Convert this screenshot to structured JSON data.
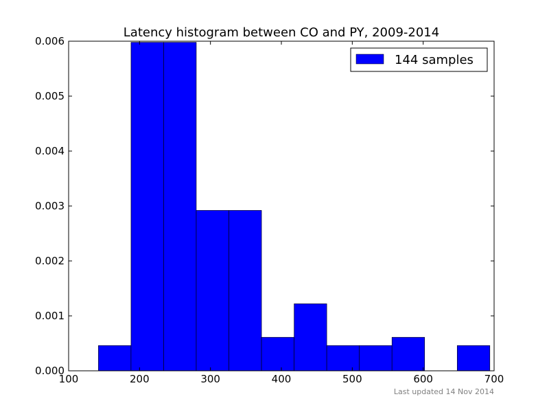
{
  "chart_data": {
    "type": "bar",
    "title": "Latency histogram between CO and PY, 2009-2014",
    "xlabel": "",
    "ylabel": "",
    "xlim": [
      100,
      700
    ],
    "ylim": [
      0,
      0.006
    ],
    "x_ticks": [
      100,
      200,
      300,
      400,
      500,
      600,
      700
    ],
    "x_tick_labels": [
      "100",
      "200",
      "300",
      "400",
      "500",
      "600",
      "700"
    ],
    "y_ticks": [
      0,
      0.001,
      0.002,
      0.003,
      0.004,
      0.005,
      0.006
    ],
    "y_tick_labels": [
      "0.000",
      "0.001",
      "0.002",
      "0.003",
      "0.004",
      "0.005",
      "0.006"
    ],
    "grid": false,
    "legend": {
      "position": "top-right",
      "entries": [
        "144 samples"
      ]
    },
    "bar_color": "#0000ff",
    "edge_color": "#000000",
    "bins": [
      {
        "x0": 142,
        "x1": 188,
        "value": 0.00046
      },
      {
        "x0": 188,
        "x1": 234,
        "value": 0.00598
      },
      {
        "x0": 234,
        "x1": 280,
        "value": 0.00598
      },
      {
        "x0": 280,
        "x1": 326,
        "value": 0.00292
      },
      {
        "x0": 326,
        "x1": 372,
        "value": 0.00292
      },
      {
        "x0": 372,
        "x1": 418,
        "value": 0.00061
      },
      {
        "x0": 418,
        "x1": 464,
        "value": 0.00122
      },
      {
        "x0": 464,
        "x1": 510,
        "value": 0.00046
      },
      {
        "x0": 510,
        "x1": 556,
        "value": 0.00046
      },
      {
        "x0": 556,
        "x1": 602,
        "value": 0.00061
      },
      {
        "x0": 602,
        "x1": 648,
        "value": 0
      },
      {
        "x0": 648,
        "x1": 694,
        "value": 0.00046
      }
    ]
  },
  "footnote": "Last updated 14 Nov 2014"
}
